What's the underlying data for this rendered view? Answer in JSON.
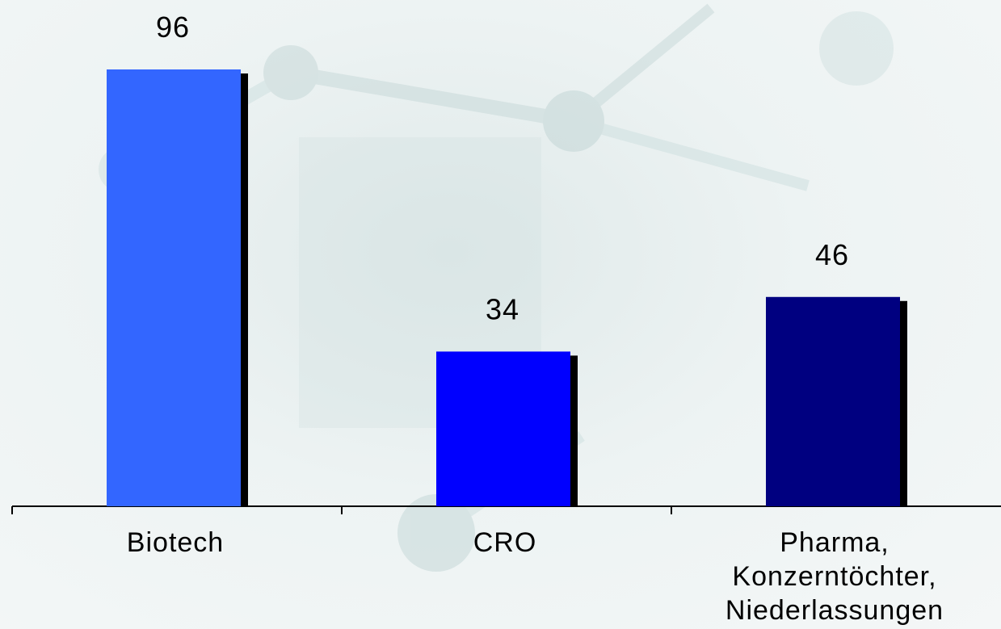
{
  "chart_data": {
    "type": "bar",
    "categories": [
      "Biotech",
      "CRO",
      "Pharma,\nKonzerntöchter,\nNiederlassungen"
    ],
    "values": [
      96,
      34,
      46
    ],
    "data_labels": [
      "96",
      "34",
      "46"
    ],
    "colors": [
      "#3366ff",
      "#0000ff",
      "#000080"
    ],
    "shadow_color": "#000000",
    "title": "",
    "xlabel": "",
    "ylabel": "",
    "ylim": [
      0,
      100
    ],
    "grid": false,
    "legend": "none"
  }
}
